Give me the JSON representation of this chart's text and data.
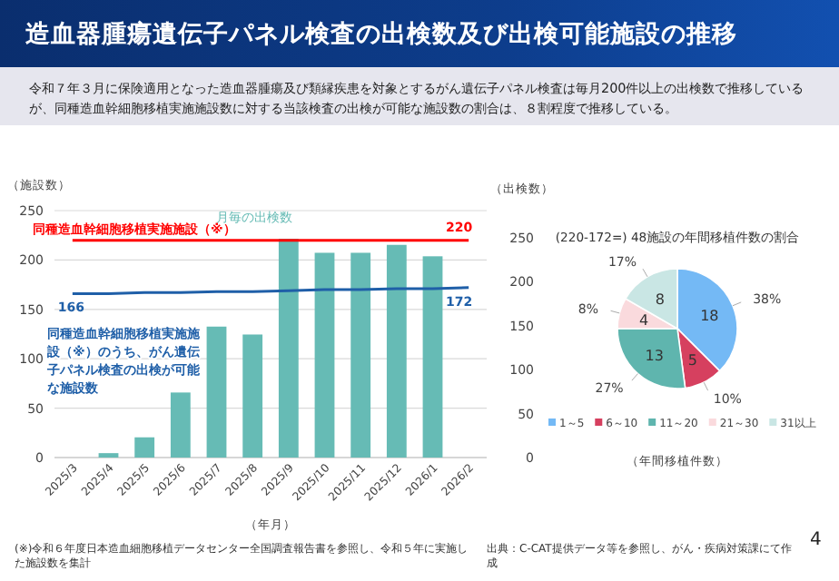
{
  "chart_data": [
    {
      "type": "bar",
      "title": "造血器腫瘍遺伝子パネル検査の出検数及び出検可能施設の推移",
      "subtitle": "令和７年３月に保険適用となった造血器腫瘍及び類縁疾患を対象とするがん遺伝子パネル検査は毎月200件以上の出検数で推移しているが、同種造血幹細胞移植実施施設数に対する当該検査の出検が可能な施設数の割合は、８割程度で推移している。",
      "categories": [
        "2025/3",
        "2025/4",
        "2025/5",
        "2025/6",
        "2025/7",
        "2025/8",
        "2025/9",
        "2025/10",
        "2025/11",
        "2025/12",
        "2026/1",
        "2026/2"
      ],
      "series": [
        {
          "name": "月毎の出検数",
          "axis": "y2",
          "color": "#66bbb5",
          "values": [
            null,
            5,
            23,
            74,
            149,
            140,
            249,
            233,
            233,
            242,
            229,
            null
          ]
        },
        {
          "name": "同種造血幹細胞移植実施施設（※）",
          "type": "line",
          "color": "#ff0000",
          "values": [
            220,
            220,
            220,
            220,
            220,
            220,
            220,
            220,
            220,
            220,
            220,
            220
          ],
          "value_labels": [
            null,
            null,
            null,
            null,
            null,
            null,
            null,
            null,
            null,
            null,
            null,
            "220"
          ]
        },
        {
          "name": "同種造血幹細胞移植実施施設（※）のうち、がん遺伝子パネル検査の出検が可能な施設数",
          "type": "line",
          "color": "#1f5fa8",
          "values": [
            166,
            166,
            167,
            167,
            168,
            168,
            169,
            170,
            170,
            171,
            171,
            172
          ],
          "value_labels": [
            "166",
            null,
            null,
            null,
            null,
            null,
            null,
            null,
            null,
            null,
            null,
            "172"
          ]
        }
      ],
      "xlabel": "（年月）",
      "ylabel": "（施設数）",
      "y2label": "（出検数）",
      "ylim": [
        0,
        250
      ],
      "yticks": [
        0,
        50,
        100,
        150,
        200,
        250
      ],
      "y2lim": [
        0,
        250
      ],
      "y2ticks": [
        0,
        50,
        100,
        150,
        200,
        250
      ],
      "grid": "y",
      "legend": false,
      "annotations": [
        "(※)令和６年度日本造血細胞移植データセンター全国調査報告書を参照し、令和５年に実施した施設数を集計",
        "出典：C-CAT提供データ等を参照し、がん・疾病対策課にて作成",
        "4"
      ]
    },
    {
      "type": "pie",
      "title": "(220-172=) 48施設の年間移植件数の割合",
      "xlabel": "（年間移植件数）",
      "categories": [
        "1～5",
        "6～10",
        "11～20",
        "21～30",
        "31以上"
      ],
      "values": [
        18,
        5,
        13,
        4,
        8
      ],
      "annotations": [
        "38%",
        "10%",
        "27%",
        "8%",
        "17%"
      ],
      "data_labels": true,
      "colors": [
        "#74b9f5",
        "#d6405f",
        "#5fb5ae",
        "#fadadd",
        "#c9e6e4"
      ],
      "legend": "bottom"
    }
  ]
}
